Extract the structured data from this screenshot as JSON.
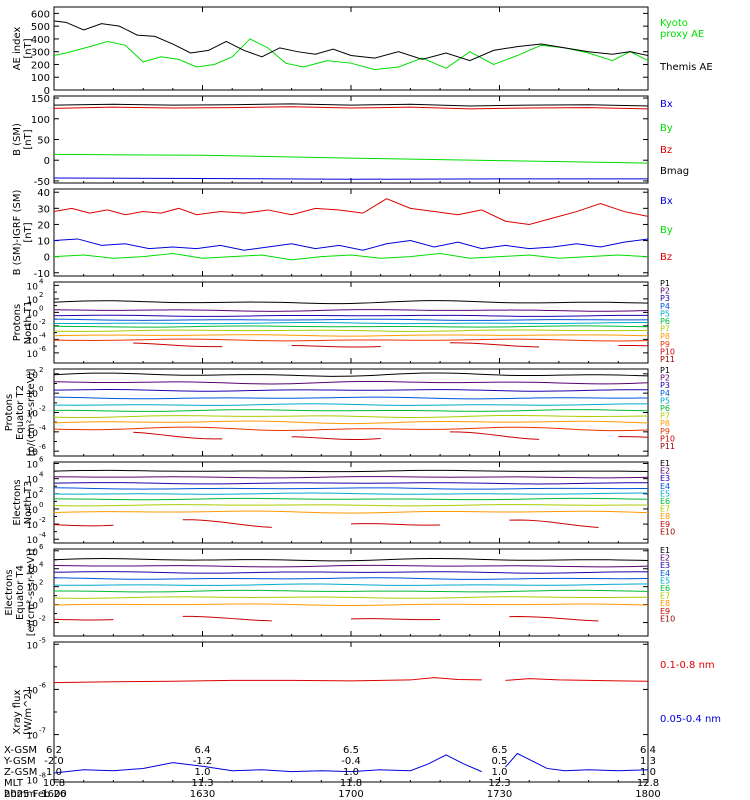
{
  "chart_data": [
    {
      "type": "line",
      "ylabel": [
        "AE index",
        "[nT]"
      ],
      "ylim": [
        0,
        650
      ],
      "yticks": [
        0,
        100,
        200,
        300,
        400,
        500,
        600
      ],
      "ytick_labels": [
        "0",
        "100",
        "200",
        "300",
        "400",
        "500",
        "600"
      ],
      "series": [
        {
          "name": "Kyoto proxy AE",
          "label_lines": [
            "Kyoto",
            "proxy AE"
          ],
          "color": "#00dd00",
          "t": [
            0,
            0.02,
            0.06,
            0.09,
            0.12,
            0.15,
            0.18,
            0.21,
            0.24,
            0.27,
            0.3,
            0.33,
            0.36,
            0.39,
            0.42,
            0.46,
            0.5,
            0.54,
            0.58,
            0.62,
            0.66,
            0.7,
            0.74,
            0.78,
            0.82,
            0.86,
            0.9,
            0.94,
            0.97,
            1.0
          ],
          "values": [
            270,
            290,
            340,
            380,
            350,
            220,
            260,
            240,
            180,
            200,
            260,
            400,
            330,
            210,
            180,
            230,
            210,
            160,
            180,
            250,
            170,
            300,
            200,
            270,
            350,
            330,
            290,
            230,
            300,
            230
          ]
        },
        {
          "name": "Themis AE",
          "color": "#000000",
          "t": [
            0,
            0.02,
            0.05,
            0.08,
            0.11,
            0.14,
            0.17,
            0.2,
            0.23,
            0.26,
            0.29,
            0.32,
            0.35,
            0.38,
            0.41,
            0.44,
            0.47,
            0.5,
            0.54,
            0.58,
            0.62,
            0.66,
            0.7,
            0.74,
            0.78,
            0.82,
            0.86,
            0.9,
            0.94,
            0.97,
            1.0
          ],
          "values": [
            540,
            530,
            470,
            520,
            500,
            430,
            420,
            360,
            290,
            310,
            380,
            310,
            260,
            330,
            300,
            280,
            320,
            270,
            250,
            300,
            240,
            290,
            230,
            310,
            340,
            360,
            330,
            300,
            280,
            300,
            270
          ]
        }
      ]
    },
    {
      "type": "line",
      "ylabel": [
        "B (SM)",
        "[nT]"
      ],
      "ylim": [
        -55,
        155
      ],
      "yticks": [
        -50,
        0,
        50,
        100,
        150
      ],
      "ytick_labels": [
        "-50",
        "0",
        "50",
        "100",
        "150"
      ],
      "series": [
        {
          "name": "Bx",
          "color": "#0000dd",
          "t": [
            0,
            0.25,
            0.5,
            0.75,
            1.0
          ],
          "values": [
            -43,
            -44,
            -46,
            -45,
            -45
          ]
        },
        {
          "name": "By",
          "color": "#00dd00",
          "t": [
            0,
            0.25,
            0.5,
            0.75,
            1.0
          ],
          "values": [
            14,
            12,
            5,
            -1,
            -7
          ]
        },
        {
          "name": "Bz",
          "color": "#dd0000",
          "t": [
            0,
            0.1,
            0.2,
            0.3,
            0.4,
            0.5,
            0.6,
            0.7,
            0.8,
            0.9,
            1.0
          ],
          "values": [
            125,
            128,
            126,
            127,
            129,
            126,
            128,
            124,
            126,
            127,
            124
          ]
        },
        {
          "name": "Bmag",
          "color": "#000000",
          "t": [
            0,
            0.1,
            0.2,
            0.3,
            0.4,
            0.5,
            0.6,
            0.7,
            0.8,
            0.9,
            1.0
          ],
          "values": [
            133,
            135,
            133,
            134,
            136,
            133,
            135,
            131,
            133,
            134,
            131
          ]
        }
      ]
    },
    {
      "type": "line",
      "ylabel": [
        "B (SM)-IGRF (SM)",
        "[nT]"
      ],
      "ylim": [
        -12,
        42
      ],
      "yticks": [
        -10,
        0,
        10,
        20,
        30,
        40
      ],
      "ytick_labels": [
        "-10",
        "0",
        "10",
        "20",
        "30",
        "40"
      ],
      "series": [
        {
          "name": "Bx",
          "color": "#0000dd",
          "t": [
            0,
            0.04,
            0.08,
            0.12,
            0.16,
            0.2,
            0.24,
            0.28,
            0.32,
            0.36,
            0.4,
            0.44,
            0.48,
            0.52,
            0.56,
            0.6,
            0.64,
            0.68,
            0.72,
            0.76,
            0.8,
            0.84,
            0.88,
            0.92,
            0.96,
            1.0
          ],
          "values": [
            10,
            11,
            7,
            8,
            5,
            6,
            5,
            7,
            4,
            6,
            8,
            5,
            7,
            4,
            8,
            10,
            6,
            9,
            5,
            7,
            5,
            6,
            8,
            6,
            9,
            11
          ]
        },
        {
          "name": "By",
          "color": "#00dd00",
          "t": [
            0,
            0.05,
            0.1,
            0.15,
            0.2,
            0.25,
            0.3,
            0.35,
            0.4,
            0.45,
            0.5,
            0.55,
            0.6,
            0.65,
            0.7,
            0.75,
            0.8,
            0.85,
            0.9,
            0.95,
            1.0
          ],
          "values": [
            0,
            1,
            -1,
            0,
            2,
            -1,
            0,
            1,
            -2,
            0,
            1,
            -1,
            0,
            2,
            -1,
            0,
            1,
            -1,
            0,
            1,
            0
          ]
        },
        {
          "name": "Bz",
          "color": "#dd0000",
          "t": [
            0,
            0.03,
            0.06,
            0.09,
            0.12,
            0.15,
            0.18,
            0.21,
            0.24,
            0.28,
            0.32,
            0.36,
            0.4,
            0.44,
            0.48,
            0.52,
            0.56,
            0.6,
            0.64,
            0.68,
            0.72,
            0.76,
            0.8,
            0.84,
            0.88,
            0.92,
            0.96,
            1.0
          ],
          "values": [
            28,
            30,
            27,
            29,
            26,
            28,
            27,
            30,
            26,
            28,
            27,
            29,
            26,
            30,
            29,
            27,
            36,
            30,
            28,
            26,
            29,
            22,
            20,
            24,
            28,
            33,
            28,
            25
          ]
        }
      ]
    },
    {
      "type": "line",
      "log": true,
      "ylabel": [
        "Protons",
        "North T1"
      ],
      "ylim_exp": [
        -7.5,
        4.5
      ],
      "ytick_exps": [
        4,
        2,
        0,
        -2,
        -4,
        -6
      ],
      "ytick_labels": [
        "10",
        "10",
        "10",
        "10",
        "10",
        "10"
      ],
      "ytick_powers": [
        "4",
        "2",
        "0",
        "-2",
        "-4",
        "-6"
      ],
      "series": [
        {
          "name": "P1",
          "color": "#000000",
          "base": 1.5,
          "wiggle": 0.25
        },
        {
          "name": "P2",
          "color": "#5a0070",
          "base": 0.3,
          "wiggle": 0.15
        },
        {
          "name": "P3",
          "color": "#2200aa",
          "base": -0.5,
          "wiggle": 0.1
        },
        {
          "name": "P4",
          "color": "#0055dd",
          "base": -1.1,
          "wiggle": 0.1
        },
        {
          "name": "P5",
          "color": "#00aacc",
          "base": -1.6,
          "wiggle": 0.1
        },
        {
          "name": "P6",
          "color": "#00bb33",
          "base": -2.1,
          "wiggle": 0.1
        },
        {
          "name": "P7",
          "color": "#aacc00",
          "base": -2.7,
          "wiggle": 0.12
        },
        {
          "name": "P8",
          "color": "#ff9900",
          "base": -3.4,
          "wiggle": 0.12
        },
        {
          "name": "P9",
          "color": "#ee3300",
          "base": -4.1,
          "wiggle": 0.15
        },
        {
          "name": "P10",
          "color": "#cc0000",
          "base": -4.9,
          "wiggle": 0.4,
          "sparse": true
        },
        {
          "name": "P11",
          "color": "#990000",
          "base": -7.5,
          "wiggle": 0,
          "hidden": true
        }
      ]
    },
    {
      "type": "line",
      "log": true,
      "ylabel": [
        "Protons",
        "Equator T2",
        "[p/(cm²-s-sr-keV)]"
      ],
      "ylim_exp": [
        -6.5,
        2.5
      ],
      "ytick_exps": [
        2,
        0,
        -2,
        -4,
        -6
      ],
      "ytick_labels": [
        "10",
        "10",
        "10",
        "10",
        "10"
      ],
      "ytick_powers": [
        "2",
        "0",
        "-2",
        "-4",
        "-6"
      ],
      "series": [
        {
          "name": "P1",
          "color": "#000000",
          "base": 1.9,
          "wiggle": 0.2
        },
        {
          "name": "P2",
          "color": "#5a0070",
          "base": 1.1,
          "wiggle": 0.15
        },
        {
          "name": "P3",
          "color": "#2200aa",
          "base": 0.3,
          "wiggle": 0.1
        },
        {
          "name": "P4",
          "color": "#0055dd",
          "base": -0.5,
          "wiggle": 0.1
        },
        {
          "name": "P5",
          "color": "#00aacc",
          "base": -1.2,
          "wiggle": 0.1
        },
        {
          "name": "P6",
          "color": "#00bb33",
          "base": -1.8,
          "wiggle": 0.1
        },
        {
          "name": "P7",
          "color": "#aacc00",
          "base": -2.4,
          "wiggle": 0.12
        },
        {
          "name": "P8",
          "color": "#ff9900",
          "base": -3.0,
          "wiggle": 0.15
        },
        {
          "name": "P9",
          "color": "#ee3300",
          "base": -3.7,
          "wiggle": 0.2
        },
        {
          "name": "P10",
          "color": "#cc0000",
          "base": -4.5,
          "wiggle": 0.5,
          "sparse": true
        },
        {
          "name": "P11",
          "color": "#990000",
          "base": -6.5,
          "wiggle": 0,
          "hidden": true
        }
      ]
    },
    {
      "type": "line",
      "log": true,
      "ylabel": [
        "Electrons",
        "North T3"
      ],
      "ylim_exp": [
        -4.5,
        6.2
      ],
      "ytick_exps": [
        6,
        4,
        2,
        0,
        -2,
        -4
      ],
      "ytick_labels": [
        "10",
        "10",
        "10",
        "10",
        "10",
        "10"
      ],
      "ytick_powers": [
        "6",
        "4",
        "2",
        "0",
        "-2",
        "-4"
      ],
      "series": [
        {
          "name": "E1",
          "color": "#000000",
          "base": 5.0,
          "wiggle": 0.1
        },
        {
          "name": "E2",
          "color": "#5a0070",
          "base": 4.2,
          "wiggle": 0.1
        },
        {
          "name": "E3",
          "color": "#2200aa",
          "base": 3.4,
          "wiggle": 0.1
        },
        {
          "name": "E4",
          "color": "#0055dd",
          "base": 2.7,
          "wiggle": 0.1
        },
        {
          "name": "E5",
          "color": "#00aacc",
          "base": 2.0,
          "wiggle": 0.1
        },
        {
          "name": "E6",
          "color": "#00bb33",
          "base": 1.3,
          "wiggle": 0.1
        },
        {
          "name": "E7",
          "color": "#aacc00",
          "base": 0.5,
          "wiggle": 0.1
        },
        {
          "name": "E8",
          "color": "#ff9900",
          "base": -0.4,
          "wiggle": 0.15
        },
        {
          "name": "E9",
          "color": "#cc0000",
          "base": -2.0,
          "wiggle": 0.6,
          "sparse": true
        },
        {
          "name": "E10",
          "color": "#990000",
          "base": -4.5,
          "wiggle": 0,
          "hidden": true
        }
      ]
    },
    {
      "type": "line",
      "log": true,
      "ylabel": [
        "Electrons",
        "Equator T4",
        "[e/(cm²-s-sr-keV)]"
      ],
      "ylim_exp": [
        -3.5,
        6.2
      ],
      "ytick_exps": [
        6,
        4,
        2,
        0,
        -2
      ],
      "ytick_labels": [
        "10",
        "10",
        "10",
        "10",
        "10"
      ],
      "ytick_powers": [
        "6",
        "4",
        "2",
        "0",
        "-2"
      ],
      "series": [
        {
          "name": "E1",
          "color": "#000000",
          "base": 5.0,
          "wiggle": 0.15
        },
        {
          "name": "E2",
          "color": "#5a0070",
          "base": 4.3,
          "wiggle": 0.1
        },
        {
          "name": "E3",
          "color": "#2200aa",
          "base": 3.6,
          "wiggle": 0.1
        },
        {
          "name": "E4",
          "color": "#0055dd",
          "base": 2.9,
          "wiggle": 0.1
        },
        {
          "name": "E5",
          "color": "#00aacc",
          "base": 2.2,
          "wiggle": 0.1
        },
        {
          "name": "E6",
          "color": "#00bb33",
          "base": 1.5,
          "wiggle": 0.1
        },
        {
          "name": "E7",
          "color": "#aacc00",
          "base": 0.8,
          "wiggle": 0.1
        },
        {
          "name": "E8",
          "color": "#ff9900",
          "base": 0.0,
          "wiggle": 0.1
        },
        {
          "name": "E9",
          "color": "#cc0000",
          "base": -1.6,
          "wiggle": 0.3,
          "sparse": true
        },
        {
          "name": "E10",
          "color": "#990000",
          "base": -3.5,
          "wiggle": 0,
          "hidden": true
        }
      ]
    },
    {
      "type": "line",
      "log": true,
      "ylabel": [
        "Xray flux",
        "[W/m^2]"
      ],
      "ylim_exp": [
        -8.05,
        -4.95
      ],
      "ytick_exps": [
        -5,
        -6,
        -7,
        -8
      ],
      "ytick_labels": [
        "10",
        "10",
        "10",
        "10"
      ],
      "ytick_powers": [
        "-5",
        "-6",
        "-7",
        "-8"
      ],
      "series": [
        {
          "name": "0.1-0.8 nm",
          "color": "#dd0000",
          "t": [
            0,
            0.1,
            0.2,
            0.3,
            0.4,
            0.5,
            0.6,
            0.64,
            0.68,
            0.72,
            0.745,
            0.76,
            0.8,
            0.85,
            0.9,
            0.95,
            1.0
          ],
          "exps": [
            -5.85,
            -5.83,
            -5.82,
            -5.8,
            -5.8,
            -5.81,
            -5.79,
            -5.74,
            -5.78,
            -5.79,
            null,
            -5.8,
            -5.76,
            -5.79,
            -5.8,
            -5.81,
            -5.82
          ]
        },
        {
          "name": "0.05-0.4 nm",
          "color": "#0000dd",
          "t": [
            0,
            0.05,
            0.1,
            0.15,
            0.2,
            0.25,
            0.3,
            0.35,
            0.4,
            0.45,
            0.5,
            0.55,
            0.6,
            0.63,
            0.66,
            0.69,
            0.72,
            0.745,
            0.76,
            0.78,
            0.8,
            0.83,
            0.86,
            0.9,
            0.95,
            1.0
          ],
          "exps": [
            -7.85,
            -7.78,
            -7.8,
            -7.75,
            -7.62,
            -7.7,
            -7.8,
            -7.78,
            -7.82,
            -7.8,
            -7.82,
            -7.78,
            -7.8,
            -7.65,
            -7.45,
            -7.65,
            -7.82,
            null,
            -7.72,
            -7.42,
            -7.55,
            -7.75,
            -7.8,
            -7.78,
            -7.8,
            -7.78
          ]
        }
      ]
    }
  ],
  "footer": {
    "rows": [
      {
        "label": "X-GSM",
        "values": [
          "6.2",
          "6.4",
          "6.5",
          "6.5",
          "6.4"
        ]
      },
      {
        "label": "Y-GSM",
        "values": [
          "-2.0",
          "-1.2",
          "-0.4",
          "0.5",
          "1.3"
        ]
      },
      {
        "label": "Z-GSM",
        "values": [
          "1.0",
          "1.0",
          "1.0",
          "1.0",
          "1.0"
        ]
      },
      {
        "label": "MLT",
        "values": [
          "10.8",
          "11.3",
          "11.8",
          "12.3",
          "12.8"
        ]
      },
      {
        "label": "hhmm",
        "values": [
          "1600",
          "1630",
          "1700",
          "1730",
          "1800"
        ]
      }
    ],
    "date": "2025 Feb 26"
  }
}
